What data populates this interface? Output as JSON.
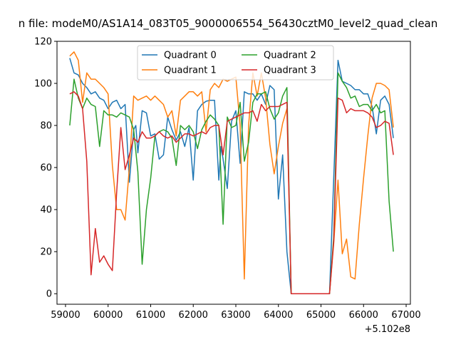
{
  "chart_data": {
    "type": "line",
    "title": "n file: modeM0/AS1A14_083T05_9000006554_56430cztM0_level2_quad_clean",
    "xlabel": "",
    "ylabel": "",
    "x_offset_label": "+5.102e8",
    "xlim": [
      58800,
      67100
    ],
    "ylim": [
      -5,
      120
    ],
    "x_ticks": [
      59000,
      60000,
      61000,
      62000,
      63000,
      64000,
      65000,
      66000,
      67000
    ],
    "x_tick_labels": [
      "59000",
      "60000",
      "61000",
      "62000",
      "63000",
      "64000",
      "65000",
      "66000",
      "67000"
    ],
    "y_ticks": [
      0,
      20,
      40,
      60,
      80,
      100,
      120
    ],
    "y_tick_labels": [
      "0",
      "20",
      "40",
      "60",
      "80",
      "100",
      "120"
    ],
    "grid": false,
    "legend_position": "top-center",
    "legend_columns": 2,
    "series": [
      {
        "name": "Quadrant 0",
        "color": "#1f77b4",
        "x": [
          59100,
          59200,
          59300,
          59400,
          59500,
          59600,
          59700,
          59800,
          59900,
          60000,
          60100,
          60200,
          60300,
          60400,
          60500,
          60600,
          60650,
          60700,
          60800,
          60900,
          61000,
          61100,
          61200,
          61300,
          61400,
          61500,
          61600,
          61700,
          61800,
          61900,
          62000,
          62100,
          62200,
          62300,
          62400,
          62500,
          62600,
          62650,
          62700,
          62800,
          62900,
          63000,
          63100,
          63200,
          63300,
          63400,
          63500,
          63600,
          63700,
          63800,
          63900,
          64000,
          64100,
          64200,
          64300,
          64400,
          65200,
          65300,
          65400,
          65500,
          65600,
          65700,
          65800,
          65900,
          66000,
          66100,
          66200,
          66300,
          66400,
          66500,
          66600,
          66700
        ],
        "y": [
          112,
          105,
          104,
          100,
          98,
          95,
          96,
          93,
          92,
          88,
          91,
          92,
          88,
          90,
          53,
          78,
          80,
          67,
          87,
          86,
          75,
          76,
          64,
          66,
          84,
          78,
          73,
          77,
          70,
          79,
          54,
          87,
          90,
          91.5,
          92,
          92,
          54,
          70,
          64,
          50,
          82,
          87,
          62,
          96,
          95,
          95,
          92,
          95,
          90,
          99,
          97,
          45,
          66,
          20,
          0,
          0,
          0,
          55,
          111,
          101,
          100,
          99,
          97,
          97,
          95,
          95,
          89,
          76,
          92,
          94,
          90,
          74
        ]
      },
      {
        "name": "Quadrant 1",
        "color": "#ff7f0e",
        "x": [
          59100,
          59200,
          59300,
          59400,
          59500,
          59600,
          59700,
          59800,
          59900,
          60000,
          60100,
          60200,
          60300,
          60400,
          60500,
          60600,
          60700,
          60800,
          60900,
          61000,
          61100,
          61200,
          61300,
          61400,
          61500,
          61600,
          61700,
          61800,
          61900,
          62000,
          62100,
          62200,
          62300,
          62400,
          62500,
          62600,
          62700,
          62800,
          62900,
          63000,
          63100,
          63200,
          63300,
          63400,
          63500,
          63600,
          63700,
          63800,
          63900,
          64000,
          64100,
          64200,
          64300,
          64400,
          65200,
          65300,
          65400,
          65500,
          65600,
          65700,
          65800,
          65900,
          66000,
          66100,
          66200,
          66300,
          66400,
          66500,
          66600,
          66700
        ],
        "y": [
          113,
          115,
          111,
          91,
          105,
          102,
          102,
          100,
          98,
          95,
          61,
          40,
          40,
          35,
          60,
          94,
          92,
          93,
          94,
          92,
          94,
          92,
          90,
          84,
          87,
          75,
          92,
          94,
          96,
          96,
          94,
          96,
          77,
          97,
          100,
          98,
          102,
          101,
          102,
          103,
          80,
          7,
          80,
          105,
          94,
          105,
          93,
          71,
          57,
          70,
          81,
          88,
          0,
          0,
          0,
          24,
          54,
          19,
          26,
          8,
          7,
          33,
          55,
          75,
          93,
          100,
          100,
          99,
          97,
          79
        ]
      },
      {
        "name": "Quadrant 2",
        "color": "#2ca02c",
        "x": [
          59100,
          59200,
          59300,
          59400,
          59500,
          59600,
          59700,
          59800,
          59900,
          60000,
          60100,
          60200,
          60300,
          60400,
          60500,
          60600,
          60700,
          60800,
          60900,
          61000,
          61100,
          61200,
          61300,
          61400,
          61500,
          61600,
          61700,
          61800,
          61900,
          62000,
          62100,
          62200,
          62300,
          62400,
          62500,
          62600,
          62700,
          62800,
          62900,
          63000,
          63100,
          63200,
          63300,
          63400,
          63500,
          63600,
          63700,
          63800,
          63900,
          64000,
          64100,
          64200,
          64300,
          64400,
          65200,
          65300,
          65400,
          65500,
          65600,
          65700,
          65800,
          65900,
          66000,
          66100,
          66200,
          66300,
          66400,
          66500,
          66600,
          66700
        ],
        "y": [
          80,
          102,
          93,
          88,
          93,
          90,
          89,
          70,
          87,
          85,
          85,
          84,
          86,
          85,
          84,
          78,
          58,
          14,
          40,
          55,
          75,
          77,
          78,
          77,
          74,
          61,
          80,
          78,
          80,
          77,
          69,
          78,
          82,
          85,
          83,
          80,
          33,
          84,
          79,
          80,
          91,
          63,
          72,
          91,
          95,
          95,
          96,
          88,
          83,
          86,
          94,
          98,
          0,
          0,
          0,
          27,
          105,
          101,
          98,
          93,
          94,
          89,
          90,
          90,
          87,
          90,
          86,
          87,
          44,
          20
        ]
      },
      {
        "name": "Quadrant 3",
        "color": "#d62728",
        "x": [
          59100,
          59200,
          59300,
          59400,
          59500,
          59600,
          59700,
          59800,
          59900,
          60000,
          60100,
          60200,
          60300,
          60400,
          60500,
          60600,
          60700,
          60800,
          60900,
          61000,
          61100,
          61200,
          61300,
          61400,
          61500,
          61600,
          61700,
          61800,
          61900,
          62000,
          62100,
          62200,
          62300,
          62400,
          62500,
          62600,
          62700,
          62800,
          62900,
          63000,
          63100,
          63200,
          63300,
          63400,
          63500,
          63600,
          63700,
          63800,
          63900,
          64000,
          64100,
          64200,
          64300,
          64400,
          65200,
          65300,
          65400,
          65500,
          65600,
          65700,
          65800,
          65900,
          66000,
          66100,
          66200,
          66300,
          66400,
          66500,
          66600,
          66700
        ],
        "y": [
          95,
          96,
          94,
          88,
          63,
          9,
          31,
          15,
          18,
          14,
          11,
          48,
          79,
          59,
          66,
          74,
          72,
          77,
          74,
          74,
          75,
          77,
          75,
          74,
          75,
          72,
          74,
          76,
          76,
          75,
          76,
          77,
          76,
          79,
          80,
          80,
          66,
          82,
          83,
          84,
          85,
          86,
          86,
          87,
          82,
          90,
          87,
          89,
          89,
          89,
          90,
          91,
          0,
          0,
          0,
          25,
          93,
          92,
          86,
          88,
          87,
          87,
          87,
          86,
          84,
          79,
          80,
          82,
          81,
          66
        ]
      }
    ]
  }
}
